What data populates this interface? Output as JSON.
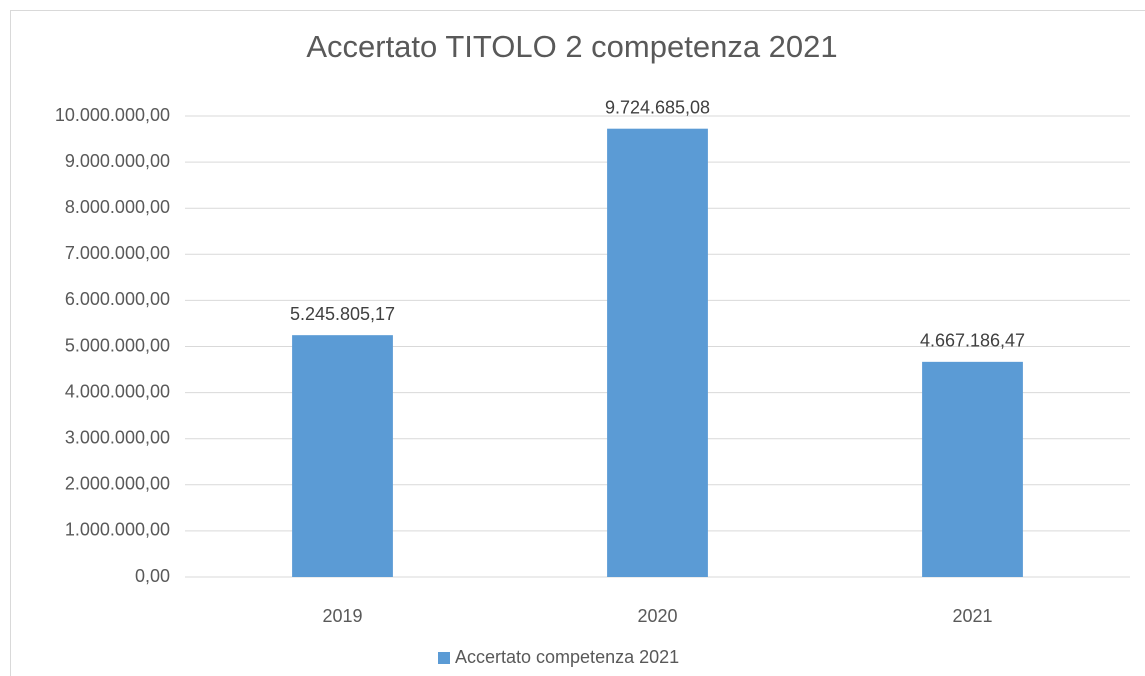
{
  "chart_data": {
    "type": "bar",
    "title": "Accertato TITOLO 2 competenza 2021",
    "categories": [
      "2019",
      "2020",
      "2021"
    ],
    "series": [
      {
        "name": "Accertato competenza 2021",
        "color": "#5b9bd5",
        "values": [
          5245805.17,
          9724685.08,
          4667186.47
        ],
        "value_labels": [
          "5.245.805,17",
          "9.724.685,08",
          "4.667.186,47"
        ]
      }
    ],
    "ylim": [
      0,
      10000000
    ],
    "yticks": [
      {
        "value": 0,
        "label": "0,00"
      },
      {
        "value": 1000000,
        "label": "1.000.000,00"
      },
      {
        "value": 2000000,
        "label": "2.000.000,00"
      },
      {
        "value": 3000000,
        "label": "3.000.000,00"
      },
      {
        "value": 4000000,
        "label": "4.000.000,00"
      },
      {
        "value": 5000000,
        "label": "5.000.000,00"
      },
      {
        "value": 6000000,
        "label": "6.000.000,00"
      },
      {
        "value": 7000000,
        "label": "7.000.000,00"
      },
      {
        "value": 8000000,
        "label": "8.000.000,00"
      },
      {
        "value": 9000000,
        "label": "9.000.000,00"
      },
      {
        "value": 10000000,
        "label": "10.000.000,00"
      }
    ],
    "grid": true,
    "legend": "bottom"
  }
}
